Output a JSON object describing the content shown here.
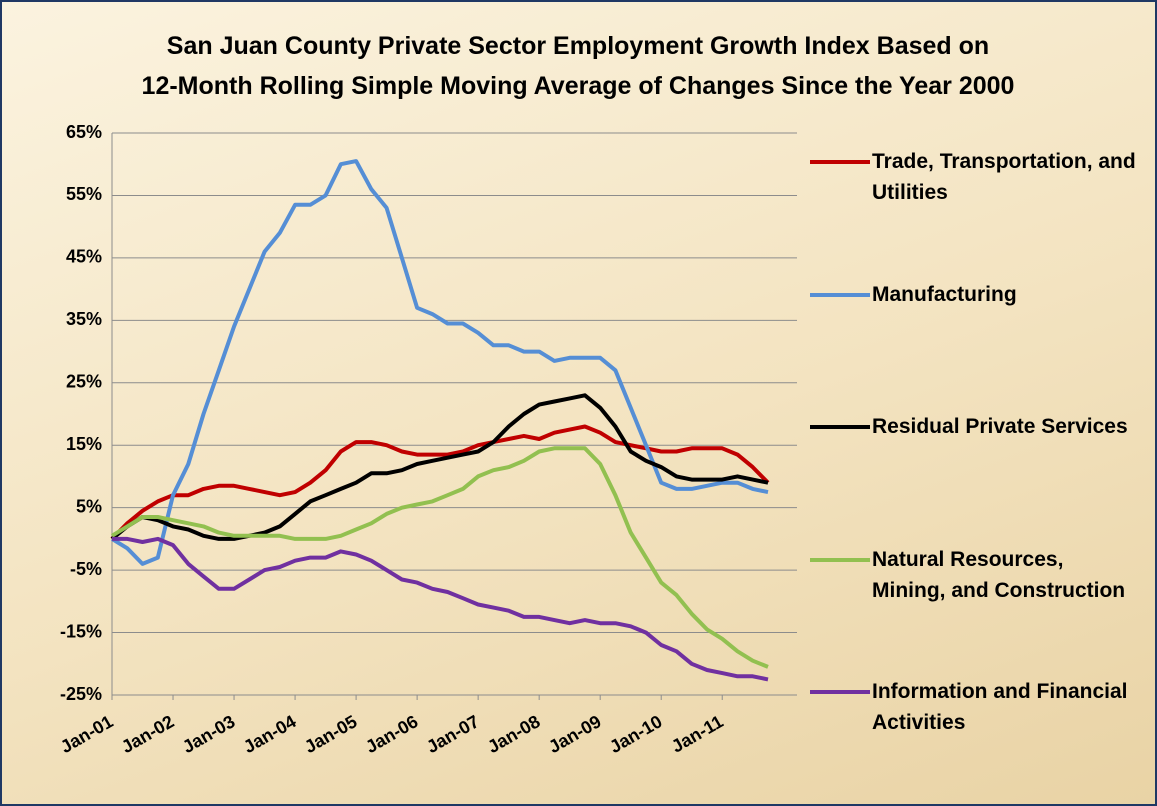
{
  "chart_data": {
    "type": "line",
    "title": [
      "San Juan County Private Sector Employment Growth Index Based on",
      "12-Month Rolling Simple Moving Average of  Changes Since the Year 2000"
    ],
    "categories": [
      "Jan-01",
      null,
      null,
      null,
      "Jan-02",
      null,
      null,
      null,
      "Jan-03",
      null,
      null,
      null,
      "Jan-04",
      null,
      null,
      null,
      "Jan-05",
      null,
      null,
      null,
      "Jan-06",
      null,
      null,
      null,
      "Jan-07",
      null,
      null,
      null,
      "Jan-08",
      null,
      null,
      null,
      "Jan-09",
      null,
      null,
      null,
      "Jan-10",
      null,
      null,
      null,
      "Jan-11",
      null,
      null,
      null
    ],
    "ylim": [
      -25,
      65
    ],
    "yticks": [
      {
        "value": -25,
        "label": "-25%"
      },
      {
        "value": -15,
        "label": "-15%"
      },
      {
        "value": -5,
        "label": "-5%"
      },
      {
        "value": 5,
        "label": "5%"
      },
      {
        "value": 15,
        "label": "15%"
      },
      {
        "value": 25,
        "label": "25%"
      },
      {
        "value": 35,
        "label": "35%"
      },
      {
        "value": 45,
        "label": "45%"
      },
      {
        "value": 55,
        "label": "55%"
      },
      {
        "value": 65,
        "label": "65%"
      }
    ],
    "grid": true,
    "legend": "right",
    "series": [
      {
        "name": "Trade, Transportation, and Utilities",
        "color": "#c00000",
        "values": [
          0,
          2.5,
          4.5,
          6,
          7,
          7,
          8,
          8.5,
          8.5,
          8,
          7.5,
          7,
          7.5,
          9,
          11,
          14,
          15.5,
          15.5,
          15,
          14,
          13.5,
          13.5,
          13.5,
          14,
          15,
          15.5,
          16,
          16.5,
          16,
          17,
          17.5,
          18,
          17,
          15.5,
          15,
          14.5,
          14,
          14,
          14.5,
          14.5,
          14.5,
          13.5,
          11.5,
          9
        ]
      },
      {
        "name": "Manufacturing",
        "color": "#558ed5",
        "values": [
          0,
          -1.5,
          -4,
          -3,
          7,
          12,
          20,
          27,
          34,
          40,
          46,
          49,
          53.5,
          53.5,
          55,
          60,
          60.5,
          56,
          53,
          45,
          37,
          36,
          34.5,
          34.5,
          33,
          31,
          31,
          30,
          30,
          28.5,
          29,
          29,
          29,
          27,
          21,
          15,
          9,
          8,
          8,
          8.5,
          9,
          9,
          8,
          7.5
        ]
      },
      {
        "name": "Residual Private Services",
        "color": "#000000",
        "values": [
          0,
          2,
          3.5,
          3,
          2,
          1.5,
          0.5,
          0,
          0,
          0.5,
          1,
          2,
          4,
          6,
          7,
          8,
          9,
          10.5,
          10.5,
          11,
          12,
          12.5,
          13,
          13.5,
          14,
          15.5,
          18,
          20,
          21.5,
          22,
          22.5,
          23,
          21,
          18,
          14,
          12.5,
          11.5,
          10,
          9.5,
          9.5,
          9.5,
          10,
          9.5,
          9
        ]
      },
      {
        "name": "Natural Resources, Mining, and Construction",
        "color": "#92c050",
        "values": [
          0.5,
          2,
          3.5,
          3.5,
          3,
          2.5,
          2,
          1,
          0.5,
          0.5,
          0.5,
          0.5,
          0,
          0,
          0,
          0.5,
          1.5,
          2.5,
          4,
          5,
          5.5,
          6,
          7,
          8,
          10,
          11,
          11.5,
          12.5,
          14,
          14.5,
          14.5,
          14.5,
          12,
          7,
          1,
          -3,
          -7,
          -9,
          -12,
          -14.5,
          -16,
          -18,
          -19.5,
          -20.5
        ]
      },
      {
        "name": "Information and Financial Activities",
        "color": "#7030a0",
        "values": [
          0,
          0,
          -0.5,
          0,
          -1,
          -4,
          -6,
          -8,
          -8,
          -6.5,
          -5,
          -4.5,
          -3.5,
          -3,
          -3,
          -2,
          -2.5,
          -3.5,
          -5,
          -6.5,
          -7,
          -8,
          -8.5,
          -9.5,
          -10.5,
          -11,
          -11.5,
          -12.5,
          -12.5,
          -13,
          -13.5,
          -13,
          -13.5,
          -13.5,
          -14,
          -15,
          -17,
          -18,
          -20,
          -21,
          -21.5,
          -22,
          -22,
          -22.5
        ]
      }
    ]
  }
}
